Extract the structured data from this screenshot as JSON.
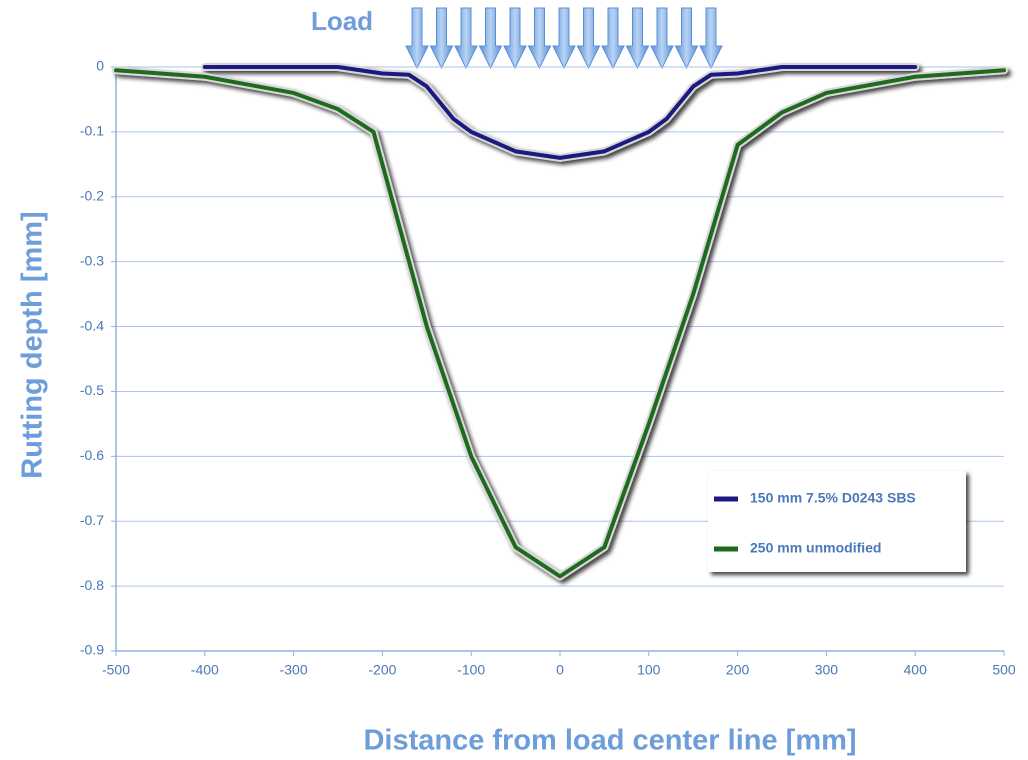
{
  "chart_data": {
    "type": "line",
    "annotation": "Load",
    "xlabel": "Distance from load center line [mm]",
    "ylabel": "Rutting depth [mm]",
    "xlim": [
      -500,
      500
    ],
    "xticks": [
      -500,
      -400,
      -300,
      -200,
      -100,
      0,
      100,
      200,
      300,
      400,
      500
    ],
    "ylim": [
      -0.9,
      0
    ],
    "yticks": [
      0,
      -0.1,
      -0.2,
      -0.3,
      -0.4,
      -0.5,
      -0.6,
      -0.7,
      -0.8,
      -0.9
    ],
    "grid": true,
    "legend": "lower right",
    "series": [
      {
        "name": "150 mm 7.5% D0243 SBS",
        "color": "#1a1a80",
        "x": [
          -400,
          -250,
          -200,
          -170,
          -150,
          -120,
          -100,
          -50,
          0,
          50,
          100,
          120,
          150,
          170,
          200,
          250,
          400
        ],
        "values": [
          0,
          0,
          -0.01,
          -0.012,
          -0.03,
          -0.08,
          -0.1,
          -0.13,
          -0.14,
          -0.13,
          -0.1,
          -0.08,
          -0.03,
          -0.012,
          -0.01,
          0,
          0
        ]
      },
      {
        "name": "250 mm unmodified",
        "color": "#1e6b1e",
        "x": [
          -500,
          -400,
          -300,
          -250,
          -210,
          -200,
          -150,
          -100,
          -50,
          0,
          50,
          100,
          150,
          200,
          250,
          300,
          400,
          500
        ],
        "values": [
          -0.005,
          -0.015,
          -0.04,
          -0.065,
          -0.1,
          -0.15,
          -0.4,
          -0.6,
          -0.74,
          -0.785,
          -0.74,
          -0.55,
          -0.35,
          -0.12,
          -0.07,
          -0.04,
          -0.015,
          -0.005
        ]
      }
    ]
  }
}
